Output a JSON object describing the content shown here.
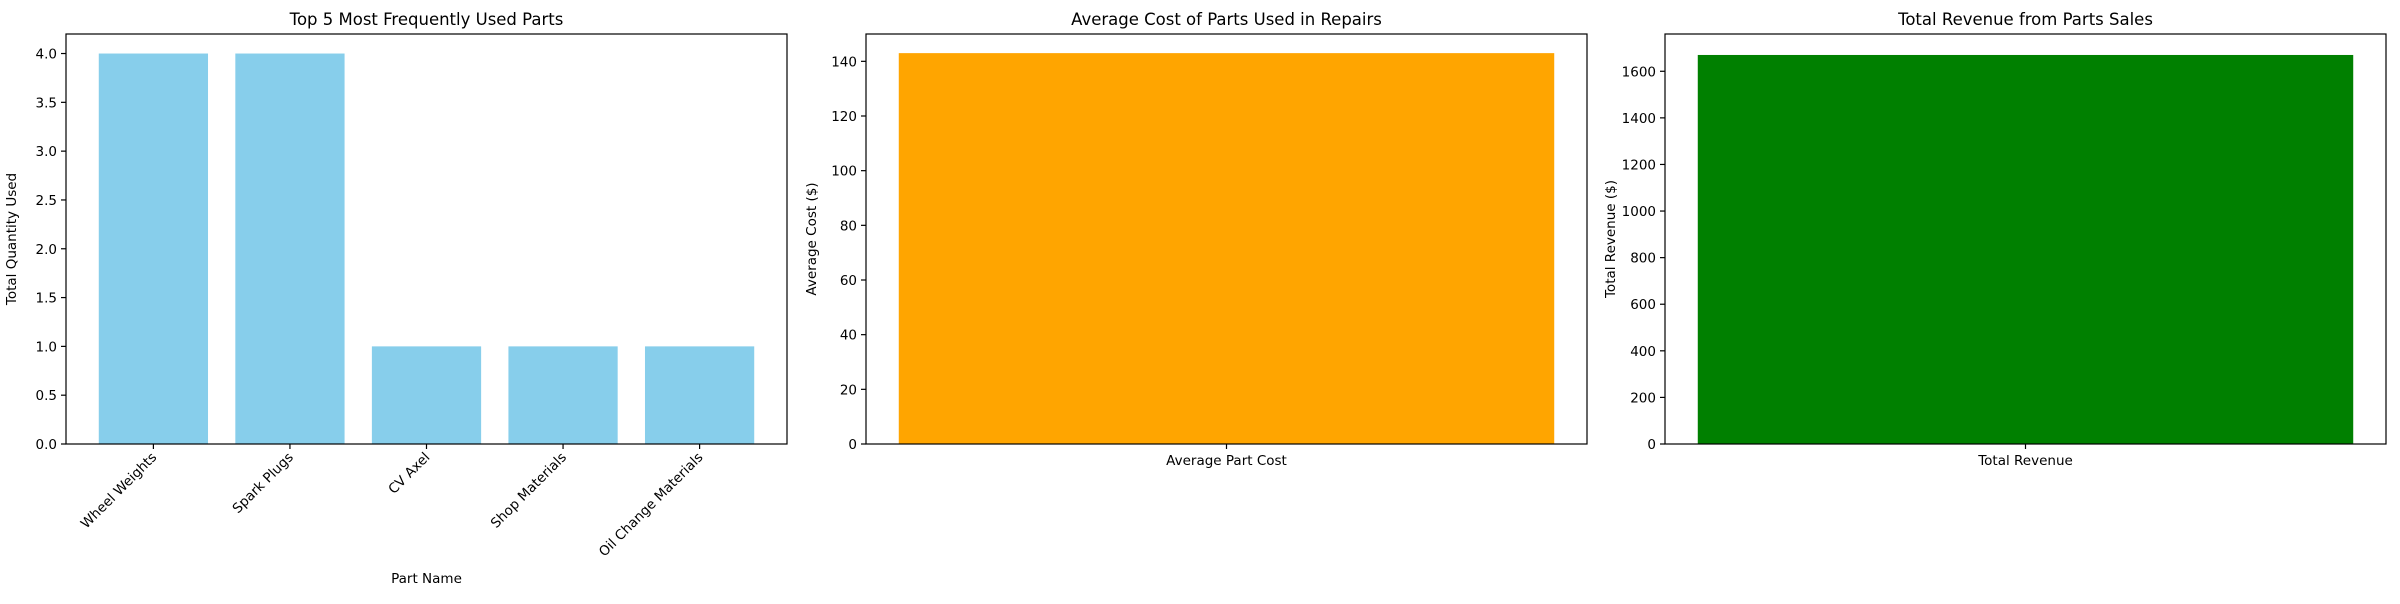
{
  "chart_data": [
    {
      "type": "bar",
      "title": "Top 5 Most Frequently Used Parts",
      "xlabel": "Part Name",
      "ylabel": "Total Quantity Used",
      "categories": [
        "Wheel Weights",
        "Spark Plugs",
        "CV Axel",
        "Shop Materials",
        "Oil Change Materials"
      ],
      "values": [
        4,
        4,
        1,
        1,
        1
      ],
      "ylim": [
        0,
        4.2
      ],
      "yticks": [
        0,
        0.5,
        1.0,
        1.5,
        2.0,
        2.5,
        3.0,
        3.5,
        4.0
      ],
      "ytick_labels": [
        "0.0",
        "0.5",
        "1.0",
        "1.5",
        "2.0",
        "2.5",
        "3.0",
        "3.5",
        "4.0"
      ],
      "color": "#87CEEB",
      "grid": false,
      "rotate_xticks": true
    },
    {
      "type": "bar",
      "title": "Average Cost of Parts Used in Repairs",
      "xlabel": "",
      "ylabel": "Average Cost ($)",
      "categories": [
        "Average Part Cost"
      ],
      "values": [
        143
      ],
      "ylim": [
        0,
        150
      ],
      "yticks": [
        0,
        20,
        40,
        60,
        80,
        100,
        120,
        140
      ],
      "ytick_labels": [
        "0",
        "20",
        "40",
        "60",
        "80",
        "100",
        "120",
        "140"
      ],
      "color": "#FFA500",
      "grid": false,
      "rotate_xticks": false
    },
    {
      "type": "bar",
      "title": "Total Revenue from Parts Sales",
      "xlabel": "",
      "ylabel": "Total Revenue ($)",
      "categories": [
        "Total Revenue"
      ],
      "values": [
        1670
      ],
      "ylim": [
        0,
        1760
      ],
      "yticks": [
        0,
        200,
        400,
        600,
        800,
        1000,
        1200,
        1400,
        1600
      ],
      "ytick_labels": [
        "0",
        "200",
        "400",
        "600",
        "800",
        "1000",
        "1200",
        "1400",
        "1600"
      ],
      "color": "#008000",
      "grid": false,
      "rotate_xticks": false
    }
  ]
}
